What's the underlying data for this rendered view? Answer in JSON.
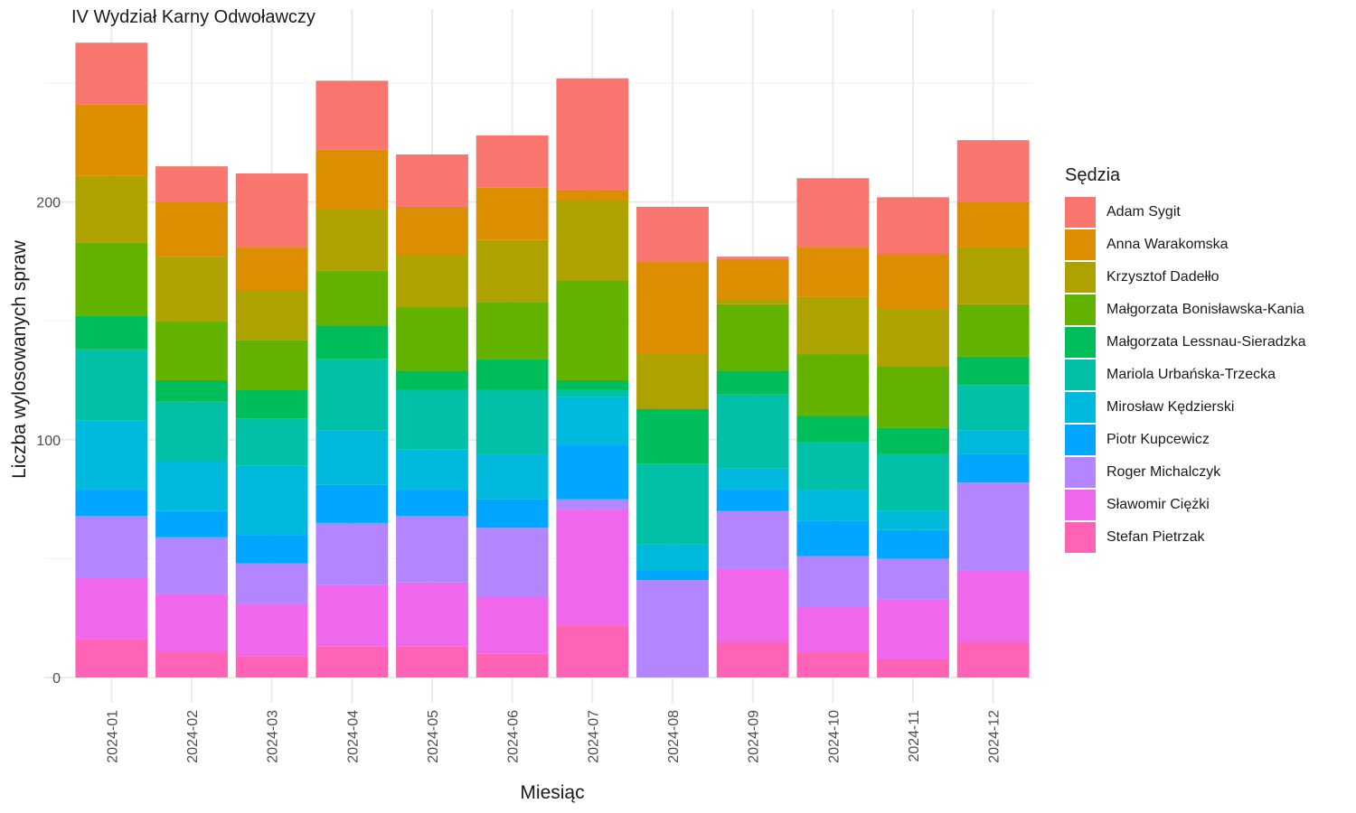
{
  "chart_data": {
    "type": "bar",
    "stacked": true,
    "title": "IV Wydział Karny Odwoławczy",
    "xlabel": "Miesiąc",
    "ylabel": "Liczba wylosowanych spraw",
    "ylim": [
      0,
      270
    ],
    "yticks": [
      0,
      100,
      200
    ],
    "grid": true,
    "legend_title": "Sędzia",
    "legend_position": "right",
    "categories": [
      "2024-01",
      "2024-02",
      "2024-03",
      "2024-04",
      "2024-05",
      "2024-06",
      "2024-07",
      "2024-08",
      "2024-09",
      "2024-10",
      "2024-11",
      "2024-12"
    ],
    "series": [
      {
        "name": "Adam Sygit",
        "color": "#F8766D",
        "values": [
          26,
          15,
          31,
          29,
          22,
          22,
          47,
          23,
          1,
          29,
          24,
          26
        ]
      },
      {
        "name": "Anna Warakomska",
        "color": "#DB8E00",
        "values": [
          30,
          23,
          18,
          25,
          20,
          22,
          4,
          39,
          17,
          21,
          23,
          19
        ]
      },
      {
        "name": "Krzysztof Dadełło",
        "color": "#AEA200",
        "values": [
          28,
          27,
          21,
          26,
          22,
          26,
          34,
          23,
          2,
          24,
          24,
          24
        ]
      },
      {
        "name": "Małgorzata Bonisławska-Kania",
        "color": "#64B200",
        "values": [
          31,
          25,
          21,
          23,
          27,
          24,
          42,
          0,
          28,
          26,
          26,
          22
        ]
      },
      {
        "name": "Małgorzata Lessnau-Sieradzka",
        "color": "#00BD5C",
        "values": [
          14,
          9,
          12,
          14,
          8,
          13,
          4,
          23,
          10,
          11,
          11,
          12
        ]
      },
      {
        "name": "Mariola Urbańska-Trzecka",
        "color": "#00C1A7",
        "values": [
          30,
          25,
          20,
          30,
          25,
          27,
          3,
          34,
          31,
          20,
          24,
          19
        ]
      },
      {
        "name": "Mirosław Kędzierski",
        "color": "#00BADE",
        "values": [
          29,
          21,
          29,
          23,
          17,
          19,
          20,
          11,
          9,
          13,
          8,
          10
        ]
      },
      {
        "name": "Piotr Kupcewicz",
        "color": "#00A6FF",
        "values": [
          11,
          11,
          12,
          16,
          11,
          12,
          23,
          4,
          9,
          15,
          12,
          12
        ]
      },
      {
        "name": "Roger Michalczyk",
        "color": "#B385FF",
        "values": [
          26,
          24,
          17,
          26,
          28,
          29,
          4,
          41,
          24,
          21,
          17,
          37
        ]
      },
      {
        "name": "Sławomir Ciężki",
        "color": "#EF67EB",
        "values": [
          26,
          24,
          22,
          26,
          27,
          24,
          49,
          0,
          31,
          19,
          25,
          30
        ]
      },
      {
        "name": "Stefan Pietrzak",
        "color": "#FF63B6",
        "values": [
          16,
          11,
          9,
          13,
          13,
          10,
          22,
          0,
          15,
          11,
          8,
          15
        ]
      }
    ]
  }
}
